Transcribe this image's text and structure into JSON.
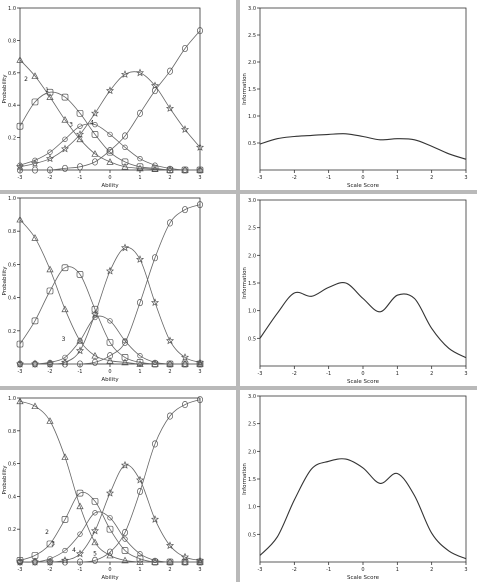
{
  "chart_data": [
    {
      "id": "p1",
      "type": "line",
      "xlabel": "Ability",
      "ylabel": "Probability",
      "xlim": [
        -3,
        3
      ],
      "ylim": [
        0,
        1
      ],
      "xticks": [
        "-3",
        "-2",
        "-1",
        "0",
        "1",
        "2",
        "3"
      ],
      "yticks": [
        "0.2",
        "0.4",
        "0.6",
        "0.8",
        "1.0"
      ],
      "annotations": [
        "1",
        "2",
        "3",
        "4"
      ],
      "series": [
        {
          "marker": "triangle",
          "x": [
            -3,
            -2.5,
            -2,
            -1.5,
            -1,
            -0.5,
            0,
            0.5,
            1,
            1.5,
            2,
            2.5,
            3
          ],
          "y": [
            0.68,
            0.58,
            0.45,
            0.31,
            0.19,
            0.1,
            0.05,
            0.02,
            0.01,
            0.005,
            0,
            0,
            0
          ]
        },
        {
          "marker": "square",
          "x": [
            -3,
            -2.5,
            -2,
            -1.5,
            -1,
            -0.5,
            0,
            0.5,
            1,
            1.5,
            2,
            2.5,
            3
          ],
          "y": [
            0.27,
            0.42,
            0.48,
            0.45,
            0.35,
            0.22,
            0.11,
            0.05,
            0.02,
            0.01,
            0,
            0,
            0
          ]
        },
        {
          "marker": "circle-thin",
          "x": [
            -3,
            -2.5,
            -2,
            -1.5,
            -1,
            -0.5,
            0,
            0.5,
            1,
            1.5,
            2,
            2.5,
            3
          ],
          "y": [
            0.03,
            0.06,
            0.11,
            0.19,
            0.27,
            0.28,
            0.22,
            0.14,
            0.07,
            0.03,
            0.01,
            0,
            0
          ]
        },
        {
          "marker": "star",
          "x": [
            -3,
            -2.5,
            -2,
            -1.5,
            -1,
            -0.5,
            0,
            0.5,
            1,
            1.5,
            2,
            2.5,
            3
          ],
          "y": [
            0.02,
            0.04,
            0.07,
            0.13,
            0.22,
            0.35,
            0.49,
            0.59,
            0.6,
            0.52,
            0.38,
            0.25,
            0.14
          ]
        },
        {
          "marker": "circle",
          "x": [
            -3,
            -2.5,
            -2,
            -1.5,
            -1,
            -0.5,
            0,
            0.5,
            1,
            1.5,
            2,
            2.5,
            3
          ],
          "y": [
            0,
            0,
            0,
            0.01,
            0.02,
            0.05,
            0.12,
            0.21,
            0.35,
            0.49,
            0.61,
            0.75,
            0.86
          ]
        }
      ]
    },
    {
      "id": "p2",
      "type": "line",
      "xlabel": "Scale Score",
      "ylabel": "Information",
      "xlim": [
        -3,
        3
      ],
      "ylim": [
        0,
        3
      ],
      "xticks": [
        "-3",
        "-2",
        "-1",
        "0",
        "1",
        "2",
        "3"
      ],
      "yticks": [
        "0.5",
        "1.0",
        "1.5",
        "2.0",
        "2.5",
        "3.0"
      ],
      "series": [
        {
          "x": [
            -3,
            -2.5,
            -2,
            -1.5,
            -1,
            -0.5,
            0,
            0.5,
            1,
            1.5,
            2,
            2.5,
            3
          ],
          "y": [
            0.48,
            0.58,
            0.62,
            0.64,
            0.66,
            0.67,
            0.62,
            0.56,
            0.58,
            0.56,
            0.44,
            0.3,
            0.2
          ]
        }
      ]
    },
    {
      "id": "p3",
      "type": "line",
      "xlabel": "Ability",
      "ylabel": "Probability",
      "xlim": [
        -3,
        3
      ],
      "ylim": [
        0,
        1
      ],
      "xticks": [
        "-3",
        "-2",
        "-1",
        "0",
        "1",
        "2",
        "3"
      ],
      "yticks": [
        "0.2",
        "0.4",
        "0.6",
        "0.8",
        "1.0"
      ],
      "annotations": [
        "3"
      ],
      "series": [
        {
          "marker": "triangle",
          "x": [
            -3,
            -2.5,
            -2,
            -1.5,
            -1,
            -0.5,
            0,
            0.5,
            1,
            1.5,
            2,
            2.5,
            3
          ],
          "y": [
            0.87,
            0.76,
            0.57,
            0.33,
            0.14,
            0.05,
            0.02,
            0.01,
            0,
            0,
            0,
            0,
            0
          ]
        },
        {
          "marker": "square",
          "x": [
            -3,
            -2.5,
            -2,
            -1.5,
            -1,
            -0.5,
            0,
            0.5,
            1,
            1.5,
            2,
            2.5,
            3
          ],
          "y": [
            0.12,
            0.26,
            0.44,
            0.58,
            0.54,
            0.33,
            0.13,
            0.04,
            0.01,
            0,
            0,
            0,
            0
          ]
        },
        {
          "marker": "circle-thin",
          "x": [
            -3,
            -2.5,
            -2,
            -1.5,
            -1,
            -0.5,
            0,
            0.5,
            1,
            1.5,
            2,
            2.5,
            3
          ],
          "y": [
            0,
            0,
            0.01,
            0.04,
            0.14,
            0.28,
            0.26,
            0.14,
            0.05,
            0.01,
            0,
            0,
            0
          ]
        },
        {
          "marker": "star",
          "x": [
            -3,
            -2.5,
            -2,
            -1.5,
            -1,
            -0.5,
            0,
            0.5,
            1,
            1.5,
            2,
            2.5,
            3
          ],
          "y": [
            0,
            0,
            0,
            0.01,
            0.08,
            0.3,
            0.56,
            0.7,
            0.63,
            0.37,
            0.14,
            0.04,
            0.01
          ]
        },
        {
          "marker": "circle",
          "x": [
            -3,
            -2.5,
            -2,
            -1.5,
            -1,
            -0.5,
            0,
            0.5,
            1,
            1.5,
            2,
            2.5,
            3
          ],
          "y": [
            0,
            0,
            0,
            0,
            0,
            0.01,
            0.05,
            0.13,
            0.37,
            0.64,
            0.85,
            0.93,
            0.96
          ]
        }
      ]
    },
    {
      "id": "p4",
      "type": "line",
      "xlabel": "Scale Score",
      "ylabel": "Information",
      "xlim": [
        -3,
        3
      ],
      "ylim": [
        0,
        3
      ],
      "xticks": [
        "-3",
        "-2",
        "-1",
        "0",
        "1",
        "2",
        "3"
      ],
      "yticks": [
        "0.5",
        "1.0",
        "1.5",
        "2.0",
        "2.5",
        "3.0"
      ],
      "series": [
        {
          "x": [
            -3,
            -2.5,
            -2,
            -1.5,
            -1,
            -0.5,
            0,
            0.5,
            1,
            1.5,
            2,
            2.5,
            3
          ],
          "y": [
            0.5,
            0.95,
            1.32,
            1.26,
            1.42,
            1.5,
            1.22,
            0.98,
            1.28,
            1.22,
            0.68,
            0.32,
            0.15
          ]
        }
      ]
    },
    {
      "id": "p5",
      "type": "line",
      "xlabel": "Ability",
      "ylabel": "Probability",
      "xlim": [
        -3,
        3
      ],
      "ylim": [
        0,
        1
      ],
      "xticks": [
        "-3",
        "-2",
        "-1",
        "0",
        "1",
        "2",
        "3"
      ],
      "yticks": [
        "0.2",
        "0.4",
        "0.6",
        "0.8",
        "1.0"
      ],
      "annotations": [
        "2",
        "3",
        "4",
        "5"
      ],
      "series": [
        {
          "marker": "triangle",
          "x": [
            -3,
            -2.5,
            -2,
            -1.5,
            -1,
            -0.5,
            0,
            0.5,
            1,
            1.5,
            2,
            2.5,
            3
          ],
          "y": [
            0.98,
            0.95,
            0.86,
            0.64,
            0.34,
            0.12,
            0.04,
            0.01,
            0,
            0,
            0,
            0,
            0
          ]
        },
        {
          "marker": "square",
          "x": [
            -3,
            -2.5,
            -2,
            -1.5,
            -1,
            -0.5,
            0,
            0.5,
            1,
            1.5,
            2,
            2.5,
            3
          ],
          "y": [
            0.01,
            0.04,
            0.11,
            0.26,
            0.42,
            0.37,
            0.2,
            0.07,
            0.02,
            0,
            0,
            0,
            0
          ]
        },
        {
          "marker": "circle-thin",
          "x": [
            -3,
            -2.5,
            -2,
            -1.5,
            -1,
            -0.5,
            0,
            0.5,
            1,
            1.5,
            2,
            2.5,
            3
          ],
          "y": [
            0,
            0,
            0.02,
            0.07,
            0.17,
            0.3,
            0.27,
            0.14,
            0.05,
            0.01,
            0,
            0,
            0
          ]
        },
        {
          "marker": "star",
          "x": [
            -3,
            -2.5,
            -2,
            -1.5,
            -1,
            -0.5,
            0,
            0.5,
            1,
            1.5,
            2,
            2.5,
            3
          ],
          "y": [
            0,
            0,
            0,
            0.01,
            0.05,
            0.19,
            0.42,
            0.59,
            0.5,
            0.26,
            0.1,
            0.03,
            0.01
          ]
        },
        {
          "marker": "circle",
          "x": [
            -3,
            -2.5,
            -2,
            -1.5,
            -1,
            -0.5,
            0,
            0.5,
            1,
            1.5,
            2,
            2.5,
            3
          ],
          "y": [
            0,
            0,
            0,
            0,
            0,
            0.01,
            0.06,
            0.18,
            0.43,
            0.72,
            0.89,
            0.96,
            0.99
          ]
        }
      ]
    },
    {
      "id": "p6",
      "type": "line",
      "xlabel": "Scale Score",
      "ylabel": "Information",
      "xlim": [
        -3,
        3
      ],
      "ylim": [
        0,
        3
      ],
      "xticks": [
        "-3",
        "-2",
        "-1",
        "0",
        "1",
        "2",
        "3"
      ],
      "yticks": [
        "0.5",
        "1.0",
        "1.5",
        "2.0",
        "2.5",
        "3.0"
      ],
      "series": [
        {
          "x": [
            -3,
            -2.5,
            -2,
            -1.5,
            -1,
            -0.5,
            0,
            0.5,
            1,
            1.5,
            2,
            2.5,
            3
          ],
          "y": [
            0.12,
            0.45,
            1.12,
            1.68,
            1.82,
            1.86,
            1.7,
            1.42,
            1.6,
            1.2,
            0.52,
            0.2,
            0.06
          ]
        }
      ]
    }
  ]
}
